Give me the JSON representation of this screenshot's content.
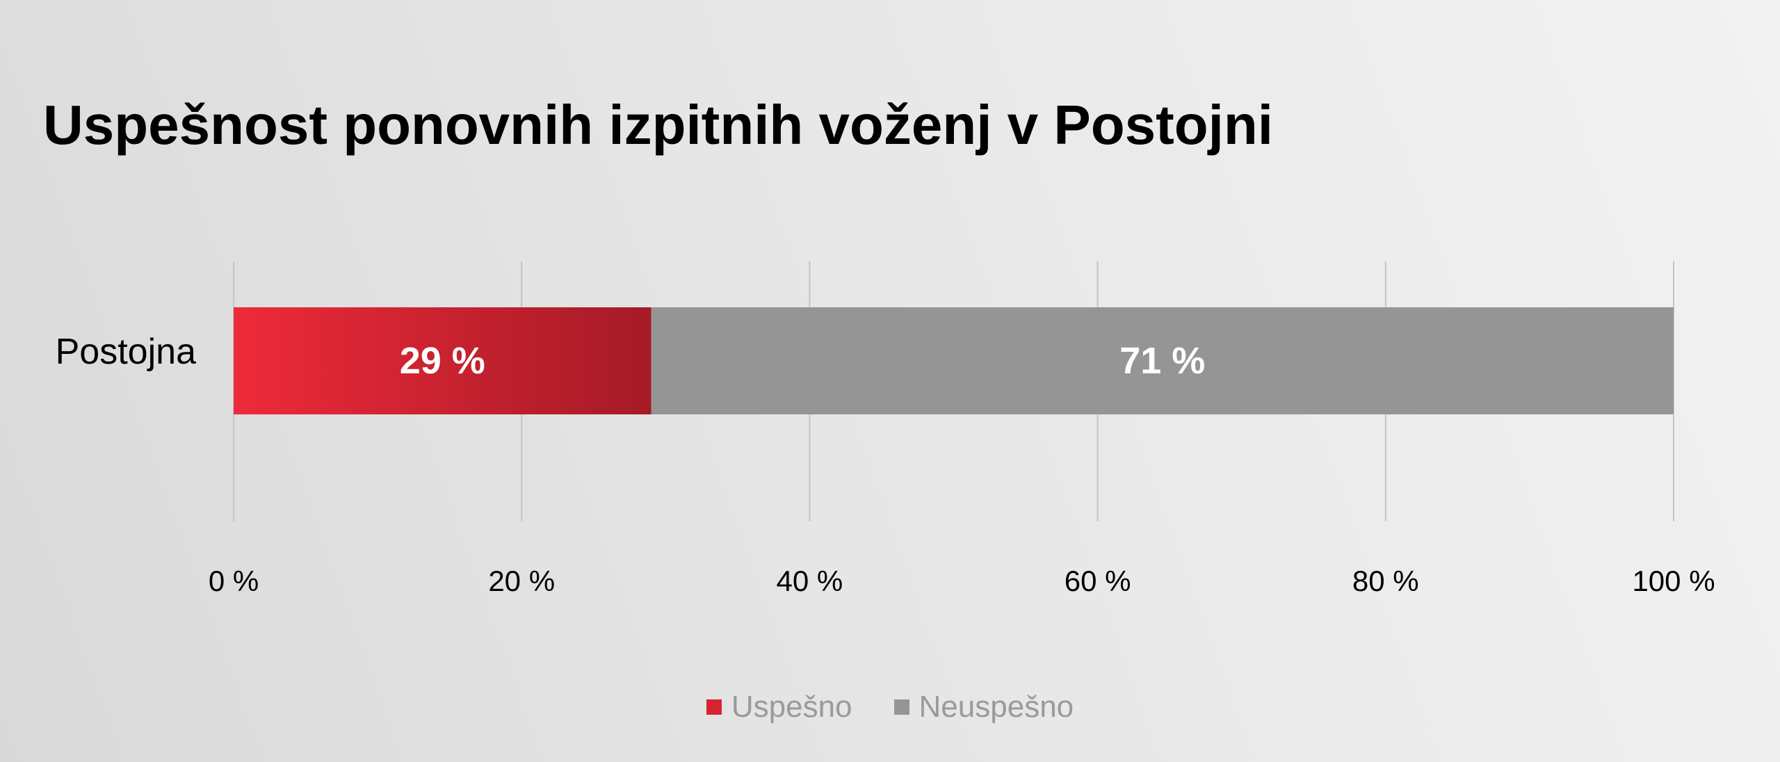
{
  "chart_data": {
    "type": "bar",
    "orientation": "horizontal",
    "stacked": true,
    "title": "Uspešnost ponovnih izpitnih voženj v Postojni",
    "categories": [
      "Postojna"
    ],
    "series": [
      {
        "name": "Uspešno",
        "values": [
          29
        ],
        "color": "#d62331",
        "gradient": [
          "#ee2a3a",
          "#a51a26"
        ]
      },
      {
        "name": "Neuspešno",
        "values": [
          71
        ],
        "color": "#959595"
      }
    ],
    "data_labels": [
      "29 %",
      "71 %"
    ],
    "xlim": [
      0,
      100
    ],
    "xticks": [
      0,
      20,
      40,
      60,
      80,
      100
    ],
    "xtick_labels": [
      "0 %",
      "20 %",
      "40 %",
      "60 %",
      "80 %",
      "100 %"
    ],
    "grid": "vertical",
    "legend": "bottom-center",
    "legend_text_color": "#9a9a9a",
    "label_color": "#ffffff",
    "gridline_color": "#c4c4c4"
  }
}
